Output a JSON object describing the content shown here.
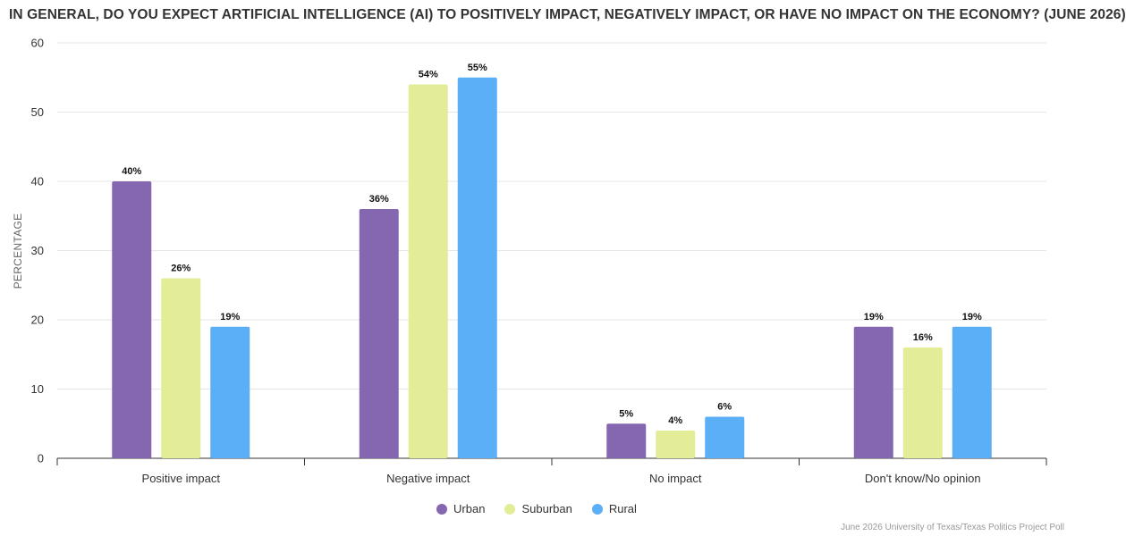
{
  "title": "IN GENERAL, DO YOU EXPECT ARTIFICIAL INTELLIGENCE (AI) TO POSITIVELY IMPACT, NEGATIVELY IMPACT, OR HAVE NO IMPACT ON THE ECONOMY? (JUNE 2026)",
  "credit": "June 2026 University of Texas/Texas Politics Project Poll",
  "chart_data": {
    "type": "bar",
    "title": "IN GENERAL, DO YOU EXPECT ARTIFICIAL INTELLIGENCE (AI) TO POSITIVELY IMPACT, NEGATIVELY IMPACT, OR HAVE NO IMPACT ON THE ECONOMY? (JUNE 2026)",
    "xlabel": "",
    "ylabel": "PERCENTAGE",
    "ylim": [
      0,
      60
    ],
    "yticks": [
      0,
      10,
      20,
      30,
      40,
      50,
      60
    ],
    "grid": true,
    "legend_position": "bottom",
    "categories": [
      "Positive impact",
      "Negative impact",
      "No impact",
      "Don't know/No opinion"
    ],
    "series": [
      {
        "name": "Urban",
        "color": "#8566b0",
        "values": [
          40,
          36,
          5,
          19
        ],
        "labels": [
          "40%",
          "36%",
          "5%",
          "19%"
        ]
      },
      {
        "name": "Suburban",
        "color": "#e3ec97",
        "values": [
          26,
          54,
          4,
          16
        ],
        "labels": [
          "26%",
          "54%",
          "4%",
          "16%"
        ]
      },
      {
        "name": "Rural",
        "color": "#5aaff7",
        "values": [
          19,
          55,
          6,
          19
        ],
        "labels": [
          "19%",
          "55%",
          "6%",
          "19%"
        ]
      }
    ]
  }
}
